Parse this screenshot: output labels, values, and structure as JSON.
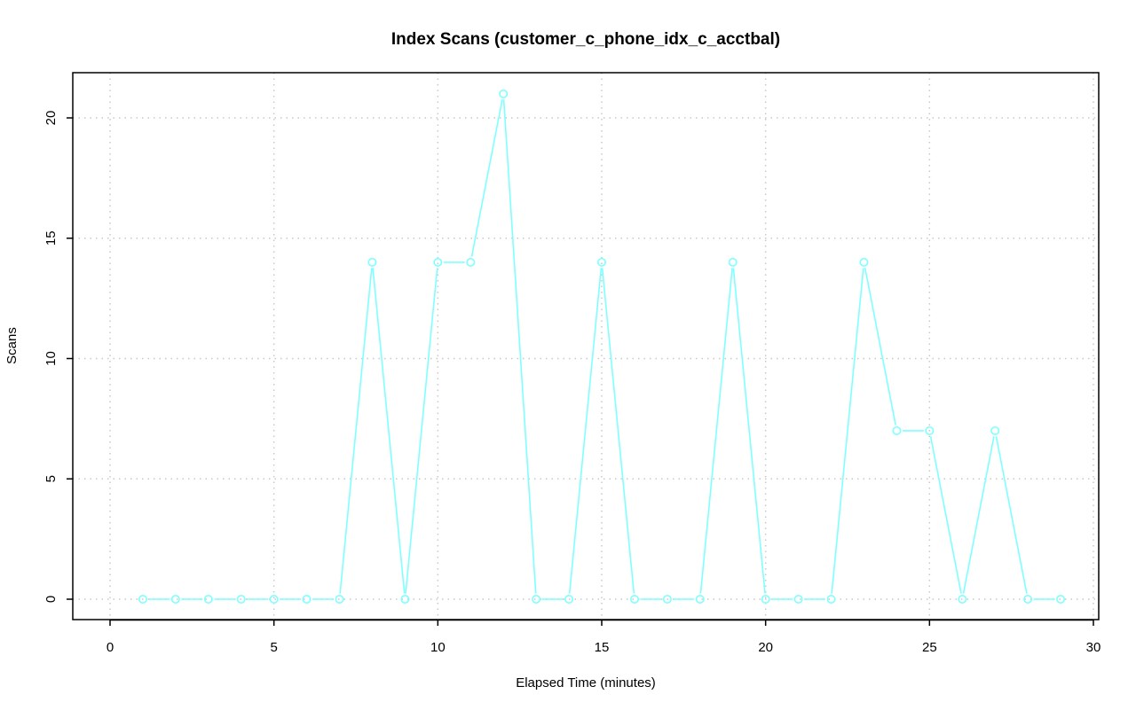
{
  "chart_data": {
    "type": "line",
    "title": "Index Scans (customer_c_phone_idx_c_acctbal)",
    "xlabel": "Elapsed Time (minutes)",
    "ylabel": "Scans",
    "xlim": [
      0,
      30
    ],
    "ylim": [
      -0.85,
      21.85
    ],
    "x_ticks": [
      0,
      5,
      10,
      15,
      20,
      25,
      30
    ],
    "y_ticks": [
      0,
      5,
      10,
      15,
      20
    ],
    "grid": true,
    "series": [
      {
        "color": "#7fffff",
        "marker": "circle",
        "x": [
          1,
          2,
          3,
          4,
          5,
          6,
          7,
          8,
          9,
          10,
          11,
          12,
          13,
          14,
          15,
          16,
          17,
          18,
          19,
          20,
          21,
          22,
          23,
          24,
          25,
          26,
          27,
          28,
          29
        ],
        "y": [
          0,
          0,
          0,
          0,
          0,
          0,
          0,
          14,
          0,
          14,
          14,
          21,
          0,
          0,
          14,
          0,
          0,
          0,
          14,
          0,
          0,
          0,
          14,
          7,
          7,
          0,
          7,
          0,
          0
        ]
      }
    ]
  }
}
